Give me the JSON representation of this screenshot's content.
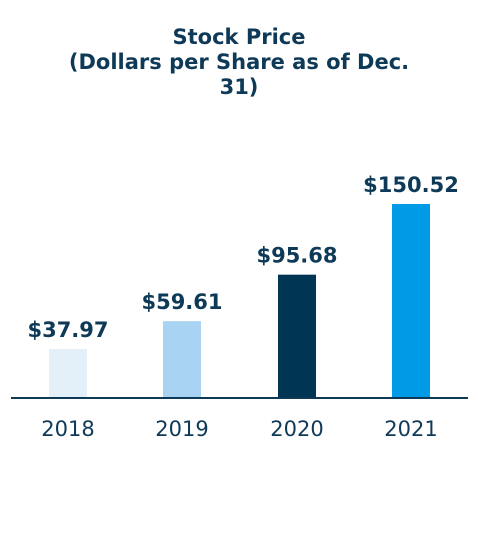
{
  "chart_data": {
    "type": "bar",
    "title_lines": [
      "Stock Price",
      "(Dollars per Share as of Dec.",
      "31)"
    ],
    "xlabel": "",
    "ylabel": "",
    "categories": [
      "2018",
      "2019",
      "2020",
      "2021"
    ],
    "values": [
      37.97,
      59.61,
      95.68,
      150.52
    ],
    "value_labels": [
      "$37.97",
      "$59.61",
      "$95.68",
      "$150.52"
    ],
    "colors": [
      "#e3f0f9",
      "#a8d3f2",
      "#003654",
      "#009ae6"
    ],
    "axis_color": "#0e3a58",
    "ylim": [
      0,
      150.52
    ],
    "grid": false,
    "legend": "none"
  }
}
